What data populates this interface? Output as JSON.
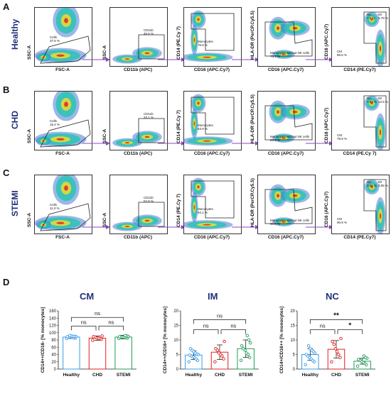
{
  "panels": [
    "A",
    "B",
    "C",
    "D"
  ],
  "rows": [
    {
      "label": "Healthy",
      "plots": [
        {
          "ylab": "SSC-A",
          "xlab": "FSC-A",
          "gates": [
            {
              "name": "Cells",
              "value": "37.6 %"
            }
          ]
        },
        {
          "ylab": "SSC-A",
          "xlab": "CD11b (APC)",
          "gates": [
            {
              "name": "CD11b",
              "value": "45.6 %"
            }
          ]
        },
        {
          "ylab": "CD14 (PE.Cy 7)",
          "xlab": "CD16 (APC.Cy7)",
          "gates": [
            {
              "name": "Monocytes",
              "value": "76.8 %"
            }
          ]
        },
        {
          "ylab": "HLA-DR (PerCP.Cy5.5)",
          "xlab": "CD16 (APC.Cy7)",
          "gates": [
            {
              "name": "Monocytes without NK cells",
              "value": "75.7 %"
            }
          ]
        },
        {
          "ylab": "CD16 (APC.Cy7)",
          "xlab": "CD14 (PE.Cy7)",
          "gates": [
            {
              "name": "NC",
              "value": "7.4 %"
            },
            {
              "name": "IM",
              "value": "5.79 %"
            },
            {
              "name": "CM",
              "value": "86.6 %"
            }
          ]
        }
      ]
    },
    {
      "label": "CHD",
      "plots": [
        {
          "ylab": "SSC-A",
          "xlab": "FSC-A",
          "gates": [
            {
              "name": "Cells",
              "value": "15.4 %"
            }
          ]
        },
        {
          "ylab": "SSC-A",
          "xlab": "CD11b (APC)",
          "gates": [
            {
              "name": "CD11b",
              "value": "33.1 %"
            }
          ]
        },
        {
          "ylab": "CD14 (PE.Cy 7)",
          "xlab": "CD16 (APC.Cy7)",
          "gates": [
            {
              "name": "Monocytes",
              "value": "83.9 %"
            }
          ]
        },
        {
          "ylab": "HLA-DR (PerCP.Cy5.5)",
          "xlab": "CD16 (APC.Cy7)",
          "gates": [
            {
              "name": "Monocytes without NK cells",
              "value": "88.2 %"
            }
          ]
        },
        {
          "ylab": "CD16 (APC.Cy7)",
          "xlab": "CD14 (PE.Cy 7)",
          "gates": [
            {
              "name": "NC",
              "value": "7.58 %"
            },
            {
              "name": "IM",
              "value": "12.5 %"
            },
            {
              "name": "CM",
              "value": "78.8 %"
            }
          ]
        }
      ]
    },
    {
      "label": "STEMI",
      "plots": [
        {
          "ylab": "SSC-A",
          "xlab": "FSC-A",
          "gates": [
            {
              "name": "Cells",
              "value": "11.0 %"
            }
          ]
        },
        {
          "ylab": "SSC-A",
          "xlab": "CD11b (APC)",
          "gates": [
            {
              "name": "CD11b",
              "value": "52.8 %"
            }
          ]
        },
        {
          "ylab": "CD14 (PE.Cy 7)",
          "xlab": "CD16 (APC.Cy7)",
          "gates": [
            {
              "name": "Monocytes",
              "value": "94.1 %"
            }
          ]
        },
        {
          "ylab": "HLA-DR (PerCP.Cy5.5)",
          "xlab": "CD16 (APC.Cy7)",
          "gates": [
            {
              "name": "Monocytes without NK cells",
              "value": "96.8 %"
            }
          ]
        },
        {
          "ylab": "CD16 (APC.Cy7)",
          "xlab": "CD14 (PE.Cy7)",
          "gates": [
            {
              "name": "NC",
              "value": "3.05 %"
            },
            {
              "name": "IM",
              "value": "3.85 %"
            },
            {
              "name": "CM",
              "value": "90.9 %"
            }
          ]
        }
      ]
    }
  ],
  "colors": {
    "healthy": "#3a9be8",
    "chd": "#e02020",
    "stemi": "#1e9e5a",
    "title": "#1f2f7a",
    "arrow": "#8e44c4"
  },
  "chart_data": [
    {
      "type": "bar",
      "title": "CM",
      "ylabel": "CD14++/CD16- [% monocytes]",
      "categories": [
        "Healthy",
        "CHD",
        "STEMI"
      ],
      "values": [
        88,
        85,
        88
      ],
      "errors": [
        4,
        6,
        5
      ],
      "ylim": [
        0,
        160
      ],
      "yticks": [
        0,
        20,
        40,
        60,
        80,
        100,
        120,
        140,
        160
      ],
      "points": [
        [
          84,
          85,
          86,
          87,
          88,
          88,
          89,
          89,
          90,
          90,
          91,
          92
        ],
        [
          79,
          82,
          84,
          85,
          86,
          88,
          89,
          91
        ],
        [
          84,
          85,
          86,
          87,
          88,
          88,
          89,
          90,
          91,
          92
        ]
      ],
      "comparisons": [
        {
          "pair": [
            0,
            2
          ],
          "label": "ns",
          "level": 2
        },
        {
          "pair": [
            0,
            1
          ],
          "label": "ns",
          "level": 1
        },
        {
          "pair": [
            1,
            2
          ],
          "label": "ns",
          "level": 1
        }
      ]
    },
    {
      "type": "bar",
      "title": "IM",
      "ylabel": "CD14++/CD16+ [% monocytes]",
      "categories": [
        "Healthy",
        "CHD",
        "STEMI"
      ],
      "values": [
        4.8,
        5.8,
        7
      ],
      "errors": [
        1.5,
        2.5,
        3
      ],
      "ylim": [
        0,
        20
      ],
      "yticks": [
        0,
        5,
        10,
        15,
        20
      ],
      "points": [
        [
          2.5,
          3,
          3.5,
          4,
          4.2,
          4.5,
          4.8,
          5,
          5.2,
          5.5,
          6,
          6.5,
          7
        ],
        [
          2.5,
          3.5,
          4.5,
          5,
          5.5,
          6.5,
          7,
          9.5
        ],
        [
          3,
          4,
          5,
          5.5,
          6.5,
          7,
          8,
          9,
          10,
          11.5
        ]
      ],
      "comparisons": [
        {
          "pair": [
            0,
            2
          ],
          "label": "ns",
          "level": 2
        },
        {
          "pair": [
            0,
            1
          ],
          "label": "ns",
          "level": 1
        },
        {
          "pair": [
            1,
            2
          ],
          "label": "ns",
          "level": 1
        }
      ]
    },
    {
      "type": "bar",
      "title": "NC",
      "ylabel": "CD14+/CD16++ [% monocytes]",
      "categories": [
        "Healthy",
        "CHD",
        "STEMI"
      ],
      "values": [
        5,
        6.8,
        2.7
      ],
      "errors": [
        2,
        3,
        1
      ],
      "ylim": [
        0,
        20
      ],
      "yticks": [
        0,
        5,
        10,
        15,
        20
      ],
      "points": [
        [
          1.5,
          2.5,
          3,
          3.5,
          4,
          4.5,
          5,
          5.5,
          6,
          6.5,
          7,
          8
        ],
        [
          2.5,
          4,
          5,
          6,
          7,
          8.5,
          9.5,
          10.5
        ],
        [
          1,
          1.5,
          2,
          2.3,
          2.6,
          3,
          3.3,
          3.7,
          4,
          4.5
        ]
      ],
      "comparisons": [
        {
          "pair": [
            0,
            2
          ],
          "label": "**",
          "level": 2
        },
        {
          "pair": [
            0,
            1
          ],
          "label": "ns",
          "level": 1
        },
        {
          "pair": [
            1,
            2
          ],
          "label": "*",
          "level": 1
        }
      ]
    }
  ]
}
